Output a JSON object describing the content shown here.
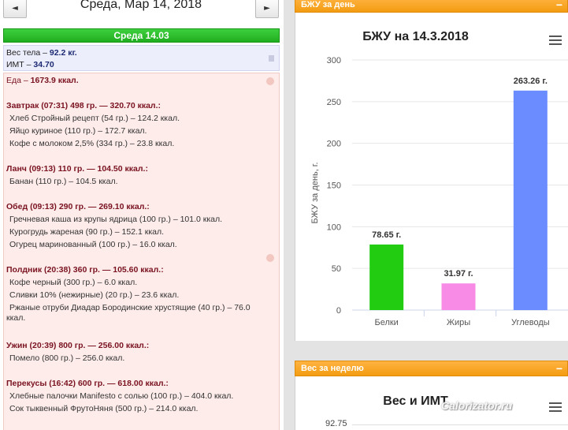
{
  "nav": {
    "prev_glyph": "◄",
    "next_glyph": "►",
    "date_title": "Среда, Мар 14, 2018"
  },
  "day_header": "Среда 14.03",
  "info": {
    "weight_label": "Вес тела",
    "weight_value": "92.2 кг.",
    "bmi_label": "ИМТ",
    "bmi_value": "34.70"
  },
  "food_total_label": "Еда",
  "food_total_value": "1673.9 ккал.",
  "meals": [
    {
      "head": "Завтрак (07:31) 498 гр. — 320.70 ккал.:",
      "items": [
        "Хлеб Стройный рецепт (54 гр.) – 124.2 ккал.",
        "Яйцо куриное (110 гр.) – 172.7 ккал.",
        "Кофе с молоком 2,5% (334 гр.) – 23.8 ккал."
      ]
    },
    {
      "head": "Ланч (09:13) 110 гр. — 104.50 ккал.:",
      "items": [
        "Банан (110 гр.) – 104.5 ккал."
      ]
    },
    {
      "head": "Обед (09:13) 290 гр. — 269.10 ккал.:",
      "items": [
        "Гречневая каша из крупы ядрица (100 гр.) – 101.0 ккал.",
        "Курогрудь жареная (90 гр.) – 152.1 ккал.",
        "Огурец маринованный (100 гр.) – 16.0 ккал."
      ]
    },
    {
      "head": "Полдник (20:38) 360 гр. — 105.60 ккал.:",
      "items": [
        "Кофе черный (300 гр.) – 6.0 ккал.",
        "Сливки 10% (нежирные) (20 гр.) – 23.6 ккал.",
        "Ржаные отруби Диадар Бородинские хрустящие (40 гр.) – 76.0 ккал."
      ]
    },
    {
      "head": "Ужин (20:39) 800 гр. — 256.00 ккал.:",
      "items": [
        "Помело (800 гр.) – 256.0 ккал."
      ]
    },
    {
      "head": "Перекусы (16:42) 600 гр. — 618.00 ккал.:",
      "items": [
        "Хлебные палочки Manifesto с солью (100 гр.) – 404.0 ккал.",
        "Сок тыквенный ФрутоНяня (500 гр.) – 214.0 ккал."
      ]
    }
  ],
  "panel_bju": {
    "header": "БЖУ за день",
    "collapse_glyph": "−"
  },
  "panel_weight": {
    "header": "Вес за неделю",
    "collapse_glyph": "−"
  },
  "weight_chart": {
    "title": "Вес и ИМТ",
    "first_tick": "92.75"
  },
  "watermark": "Calorizator.ru",
  "colors": {
    "accent_orange": "#f39c12",
    "header_green": "#1fae1f",
    "meal_head": "#7a1220"
  },
  "chart_data": {
    "type": "bar",
    "title": "БЖУ на 14.3.2018",
    "ylabel": "БЖУ за день, г.",
    "ylim": [
      0,
      300
    ],
    "yticks": [
      0,
      50,
      100,
      150,
      200,
      250,
      300
    ],
    "categories": [
      "Белки",
      "Жиры",
      "Углеводы"
    ],
    "values": [
      78.65,
      31.97,
      263.26
    ],
    "data_labels": [
      "78.65 г.",
      "31.97 г.",
      "263.26 г."
    ],
    "colors": [
      "#22cc11",
      "#f78be6",
      "#6b8cff"
    ],
    "grid": true,
    "legend": "none"
  }
}
